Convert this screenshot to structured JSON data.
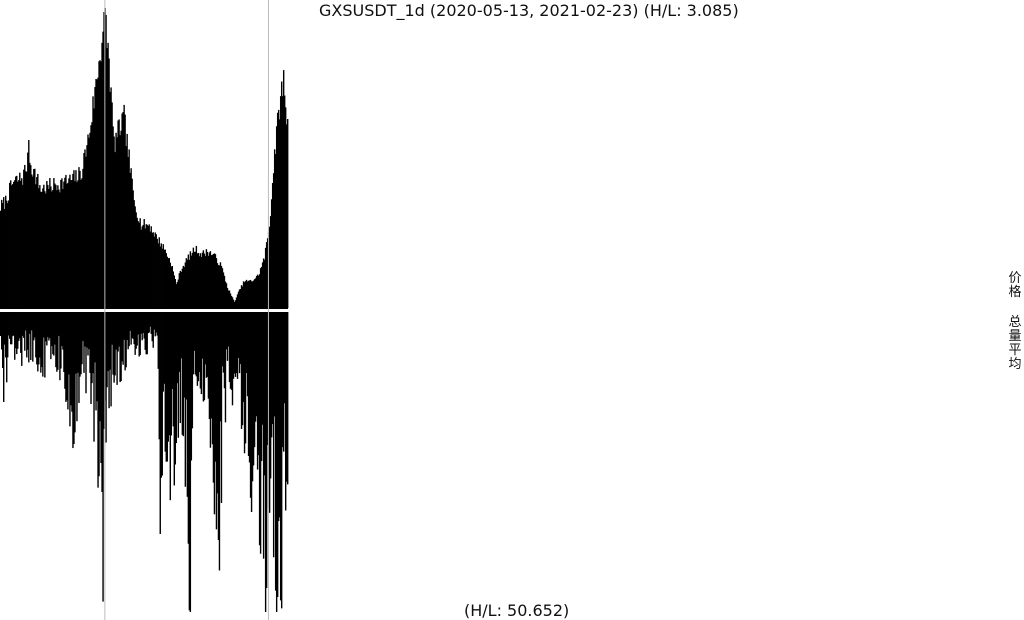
{
  "chart_data": {
    "type": "bar",
    "title": "GXSUSDT_1d (2020-05-13, 2021-02-23) (H/L: 3.085)",
    "x": {
      "start": "2020-05-13",
      "end": "2021-02-23",
      "count": 287
    },
    "series": [
      {
        "name": "价格",
        "relative_level_anchors": [
          [
            0,
            0.34
          ],
          [
            5,
            0.36
          ],
          [
            12,
            0.42
          ],
          [
            22,
            0.44
          ],
          [
            28,
            0.5
          ],
          [
            33,
            0.46
          ],
          [
            40,
            0.4
          ],
          [
            50,
            0.41
          ],
          [
            60,
            0.42
          ],
          [
            70,
            0.43
          ],
          [
            80,
            0.45
          ],
          [
            88,
            0.58
          ],
          [
            95,
            0.75
          ],
          [
            100,
            0.88
          ],
          [
            104,
            0.99
          ],
          [
            108,
            0.83
          ],
          [
            113,
            0.55
          ],
          [
            118,
            0.6
          ],
          [
            123,
            0.64
          ],
          [
            128,
            0.5
          ],
          [
            133,
            0.36
          ],
          [
            140,
            0.28
          ],
          [
            148,
            0.28
          ],
          [
            155,
            0.24
          ],
          [
            163,
            0.2
          ],
          [
            170,
            0.15
          ],
          [
            175,
            0.08
          ],
          [
            180,
            0.13
          ],
          [
            187,
            0.17
          ],
          [
            194,
            0.2
          ],
          [
            200,
            0.18
          ],
          [
            206,
            0.19
          ],
          [
            212,
            0.18
          ],
          [
            220,
            0.14
          ],
          [
            226,
            0.07
          ],
          [
            233,
            0.02
          ],
          [
            238,
            0.06
          ],
          [
            243,
            0.09
          ],
          [
            250,
            0.09
          ],
          [
            257,
            0.11
          ],
          [
            263,
            0.17
          ],
          [
            268,
            0.28
          ],
          [
            273,
            0.52
          ],
          [
            278,
            0.68
          ],
          [
            282,
            0.77
          ],
          [
            286,
            0.61
          ]
        ]
      },
      {
        "name": "总量平均",
        "relative_level_anchors": [
          [
            0,
            0.12
          ],
          [
            4,
            0.22
          ],
          [
            10,
            0.1
          ],
          [
            20,
            0.15
          ],
          [
            30,
            0.12
          ],
          [
            40,
            0.18
          ],
          [
            55,
            0.14
          ],
          [
            65,
            0.25
          ],
          [
            72,
            0.36
          ],
          [
            80,
            0.18
          ],
          [
            92,
            0.28
          ],
          [
            98,
            0.55
          ],
          [
            102,
            0.75
          ],
          [
            108,
            0.25
          ],
          [
            115,
            0.2
          ],
          [
            125,
            0.15
          ],
          [
            135,
            0.12
          ],
          [
            150,
            0.1
          ],
          [
            157,
            0.15
          ],
          [
            159,
            0.72
          ],
          [
            163,
            0.35
          ],
          [
            170,
            0.5
          ],
          [
            180,
            0.3
          ],
          [
            186,
            0.52
          ],
          [
            189,
            0.99
          ],
          [
            193,
            0.25
          ],
          [
            200,
            0.22
          ],
          [
            210,
            0.35
          ],
          [
            217,
            0.75
          ],
          [
            222,
            0.3
          ],
          [
            230,
            0.22
          ],
          [
            240,
            0.36
          ],
          [
            250,
            0.5
          ],
          [
            257,
            0.6
          ],
          [
            265,
            0.9
          ],
          [
            270,
            0.6
          ],
          [
            276,
            0.93
          ],
          [
            280,
            0.8
          ],
          [
            286,
            0.5
          ]
        ]
      }
    ],
    "spikes": [
      {
        "series": 0,
        "index": 104,
        "relative_level": 1.0
      },
      {
        "series": 0,
        "index": 28,
        "relative_level": 0.56
      },
      {
        "series": 1,
        "index": 189,
        "relative_level": 1.0
      },
      {
        "series": 1,
        "index": 159,
        "relative_level": 0.74
      },
      {
        "series": 1,
        "index": 265,
        "relative_level": 0.92
      },
      {
        "series": 1,
        "index": 276,
        "relative_level": 0.95
      },
      {
        "series": 1,
        "index": 101,
        "relative_level": 0.6
      },
      {
        "series": 1,
        "index": 217,
        "relative_level": 0.76
      },
      {
        "series": 1,
        "index": 3,
        "relative_level": 0.3
      }
    ],
    "markers": [
      104,
      267
    ],
    "side_labels": [
      "价格",
      "总量平均"
    ],
    "volume_hl_label": "(H/L: 50.652)",
    "colors": {
      "bars": "#000000",
      "marker": "#bbbbbb",
      "background": "#ffffff"
    }
  }
}
